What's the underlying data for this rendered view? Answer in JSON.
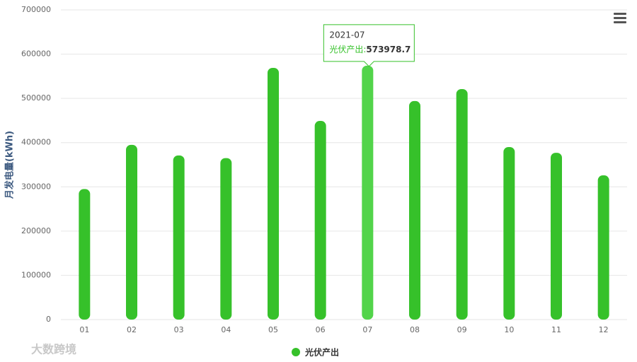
{
  "chart_data": {
    "type": "bar",
    "y_label": "月发电量(kWh)",
    "categories": [
      "01",
      "02",
      "03",
      "04",
      "05",
      "06",
      "07",
      "08",
      "09",
      "10",
      "11",
      "12"
    ],
    "series": [
      {
        "name": "光伏产出",
        "color": "#36c12a",
        "values": [
          295000,
          395000,
          371000,
          365000,
          569000,
          449000,
          573978.7,
          494000,
          521000,
          390000,
          377000,
          326000
        ]
      }
    ],
    "ylim": [
      0,
      700000
    ],
    "yticks": [
      0,
      100000,
      200000,
      300000,
      400000,
      500000,
      600000,
      700000
    ],
    "grid": true,
    "legend": "bottom",
    "tooltip": {
      "index": 6,
      "title": "2021-07",
      "label": "光伏产出:",
      "color": "#52d44a"
    },
    "watermark": "大数跨境"
  }
}
